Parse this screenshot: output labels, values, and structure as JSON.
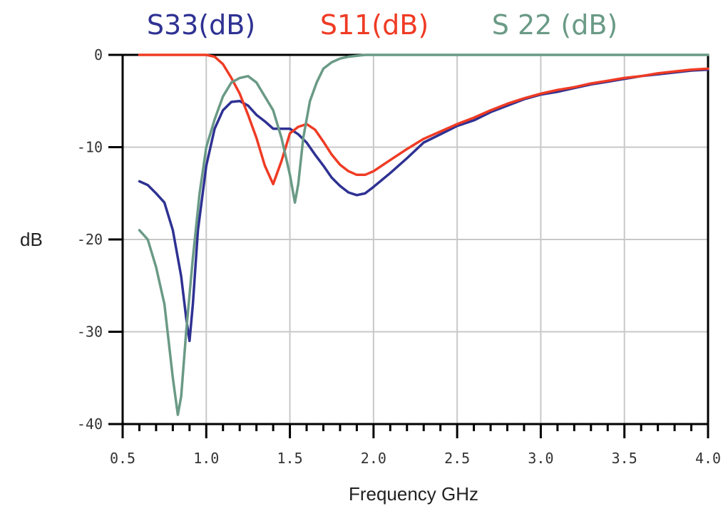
{
  "chart_data": {
    "type": "line",
    "title": "",
    "xlabel": "Frequency GHz",
    "ylabel": "dB",
    "xlim": [
      0.5,
      4.0
    ],
    "ylim": [
      -40,
      0
    ],
    "grid": true,
    "legend_placement": "top",
    "xticks": [
      {
        "value": 0.5,
        "label": "0.5"
      },
      {
        "value": 1.0,
        "label": "1.0"
      },
      {
        "value": 1.5,
        "label": "1.5"
      },
      {
        "value": 2.0,
        "label": "2.0"
      },
      {
        "value": 2.5,
        "label": "2.5"
      },
      {
        "value": 3.0,
        "label": "3.0"
      },
      {
        "value": 3.5,
        "label": "3.5"
      },
      {
        "value": 4.0,
        "label": "4.0"
      }
    ],
    "yticks": [
      {
        "value": 0,
        "label": "0"
      },
      {
        "value": -10,
        "label": "-10"
      },
      {
        "value": -20,
        "label": "-20"
      },
      {
        "value": -30,
        "label": "-30"
      },
      {
        "value": -40,
        "label": "-40"
      }
    ],
    "minor_xticks": [
      0.6,
      0.7,
      0.8,
      0.9,
      1.1,
      1.2,
      1.3,
      1.4,
      1.6,
      1.7,
      1.8,
      1.9,
      2.1,
      2.2,
      2.3,
      2.4,
      2.6,
      2.7,
      2.8,
      2.9,
      3.1,
      3.2,
      3.3,
      3.4,
      3.6,
      3.7,
      3.8,
      3.9
    ],
    "series": [
      {
        "name": "S33(dB)",
        "color": "#2e3192",
        "x": [
          0.6,
          0.65,
          0.7,
          0.75,
          0.8,
          0.85,
          0.88,
          0.9,
          0.92,
          0.95,
          1.0,
          1.05,
          1.1,
          1.15,
          1.2,
          1.25,
          1.3,
          1.35,
          1.4,
          1.45,
          1.5,
          1.55,
          1.6,
          1.65,
          1.7,
          1.75,
          1.8,
          1.85,
          1.9,
          1.95,
          2.0,
          2.1,
          2.2,
          2.3,
          2.4,
          2.5,
          2.6,
          2.7,
          2.8,
          2.9,
          3.0,
          3.1,
          3.2,
          3.3,
          3.4,
          3.5,
          3.6,
          3.7,
          3.8,
          3.9,
          4.0
        ],
        "values": [
          -13.7,
          -14.1,
          -15.0,
          -16.0,
          -19.0,
          -24.0,
          -28.5,
          -31.0,
          -27.0,
          -19.0,
          -12.0,
          -8.0,
          -6.0,
          -5.1,
          -5.0,
          -5.5,
          -6.5,
          -7.2,
          -8.0,
          -8.0,
          -8.0,
          -8.6,
          -9.5,
          -10.8,
          -12.0,
          -13.3,
          -14.2,
          -14.9,
          -15.2,
          -15.0,
          -14.3,
          -12.8,
          -11.2,
          -9.5,
          -8.6,
          -7.7,
          -7.1,
          -6.2,
          -5.5,
          -4.8,
          -4.3,
          -4.0,
          -3.6,
          -3.2,
          -2.9,
          -2.6,
          -2.3,
          -2.1,
          -1.9,
          -1.7,
          -1.6
        ]
      },
      {
        "name": "S11(dB)",
        "color": "#ef3b24",
        "x": [
          0.6,
          0.7,
          0.8,
          0.9,
          1.0,
          1.05,
          1.1,
          1.15,
          1.2,
          1.25,
          1.3,
          1.35,
          1.4,
          1.45,
          1.5,
          1.55,
          1.6,
          1.65,
          1.7,
          1.75,
          1.8,
          1.85,
          1.9,
          1.95,
          2.0,
          2.1,
          2.2,
          2.3,
          2.4,
          2.5,
          2.6,
          2.7,
          2.8,
          2.9,
          3.0,
          3.1,
          3.2,
          3.3,
          3.4,
          3.5,
          3.6,
          3.7,
          3.8,
          3.9,
          4.0
        ],
        "values": [
          0,
          0,
          0,
          0,
          0,
          -0.2,
          -1.0,
          -2.5,
          -4.2,
          -6.5,
          -9.0,
          -12.0,
          -14.0,
          -11.5,
          -8.5,
          -7.8,
          -7.5,
          -8.1,
          -9.4,
          -10.8,
          -11.9,
          -12.6,
          -13.0,
          -13.0,
          -12.6,
          -11.4,
          -10.2,
          -9.1,
          -8.3,
          -7.5,
          -6.8,
          -6.0,
          -5.3,
          -4.7,
          -4.2,
          -3.8,
          -3.5,
          -3.1,
          -2.8,
          -2.5,
          -2.3,
          -2.0,
          -1.8,
          -1.6,
          -1.5
        ]
      },
      {
        "name": "S 22 (dB)",
        "color": "#6a9a86",
        "x": [
          0.6,
          0.65,
          0.7,
          0.75,
          0.8,
          0.83,
          0.85,
          0.88,
          0.92,
          0.96,
          1.0,
          1.05,
          1.1,
          1.15,
          1.2,
          1.25,
          1.3,
          1.35,
          1.4,
          1.45,
          1.5,
          1.53,
          1.55,
          1.58,
          1.62,
          1.66,
          1.7,
          1.75,
          1.8,
          1.85,
          1.9,
          1.95,
          2.0,
          2.5,
          3.0,
          3.5,
          4.0
        ],
        "values": [
          -19.0,
          -20.0,
          -23.0,
          -27.0,
          -35.0,
          -39.0,
          -37.0,
          -30.0,
          -22.0,
          -15.0,
          -10.0,
          -7.0,
          -4.5,
          -3.0,
          -2.5,
          -2.3,
          -3.0,
          -4.5,
          -6.0,
          -9.0,
          -13.0,
          -16.0,
          -14.0,
          -9.0,
          -5.0,
          -3.0,
          -1.5,
          -0.8,
          -0.4,
          -0.2,
          -0.1,
          0,
          0,
          0,
          0,
          0,
          0
        ]
      }
    ]
  }
}
